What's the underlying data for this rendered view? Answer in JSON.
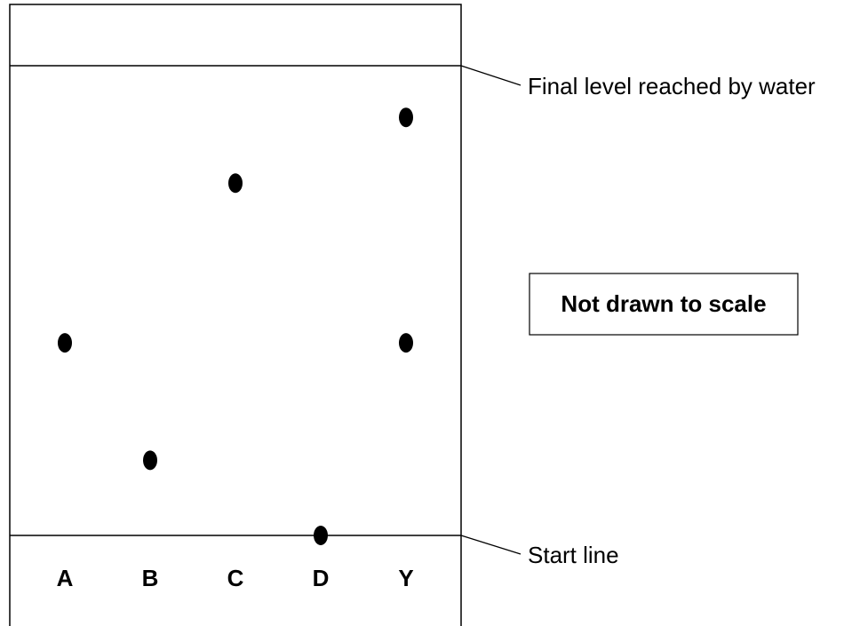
{
  "labels": {
    "final_level": "Final level reached by water",
    "start_line": "Start line",
    "note": "Not drawn to scale"
  },
  "lanes": [
    {
      "label": "A",
      "spots": [
        0.41
      ]
    },
    {
      "label": "B",
      "spots": [
        0.16
      ]
    },
    {
      "label": "C",
      "spots": [
        0.75
      ]
    },
    {
      "label": "D",
      "spots": [
        0.0
      ]
    },
    {
      "label": "Y",
      "spots": [
        0.89,
        0.41
      ]
    }
  ],
  "colors": {
    "ink": "#000000",
    "paper": "#ffffff"
  }
}
